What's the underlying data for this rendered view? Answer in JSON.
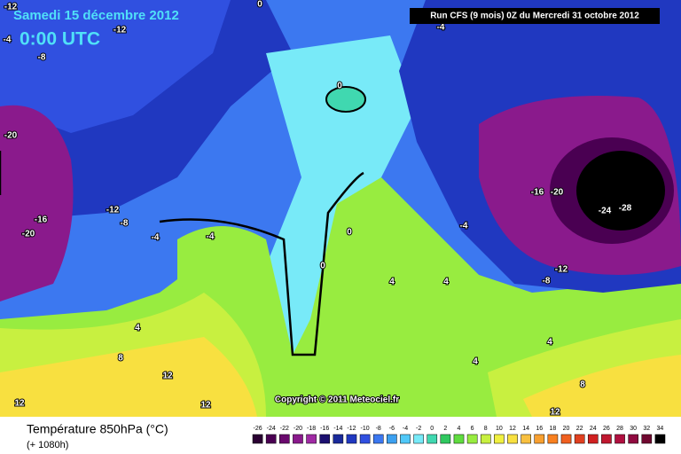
{
  "header": {
    "date": "Samedi 15 décembre 2012",
    "time": "0:00 UTC",
    "run": "Run CFS (9 mois) 0Z du Mercredi 31 octobre 2012"
  },
  "footer": {
    "title": "Température 850hPa (°C)",
    "subtitle": "(+ 1080h)",
    "copyright": "Copyright © 2011 Meteociel.fr"
  },
  "legend": {
    "values": [
      -26,
      -24,
      -22,
      -20,
      -18,
      -16,
      -14,
      -12,
      -10,
      -8,
      -6,
      -4,
      -2,
      0,
      2,
      4,
      6,
      8,
      10,
      12,
      14,
      16,
      18,
      20,
      22,
      24,
      26,
      28,
      30,
      32,
      34
    ],
    "colors": [
      "#2a0032",
      "#4a0052",
      "#6a0a6e",
      "#8a1a8c",
      "#a02aa4",
      "#1c1070",
      "#1a2a9a",
      "#2038c0",
      "#3050e0",
      "#3c78f0",
      "#3ca0f0",
      "#50c8f8",
      "#78eaf8",
      "#40d8b0",
      "#30c860",
      "#60dc40",
      "#98ec40",
      "#c8f040",
      "#f0f040",
      "#f8e040",
      "#f8c040",
      "#f8a030",
      "#f88020",
      "#f06020",
      "#e04020",
      "#d02020",
      "#c01830",
      "#b01040",
      "#900a40",
      "#700830",
      "#000000"
    ]
  },
  "contour_labels": [
    0,
    -12,
    -4,
    -8,
    -12,
    -4,
    0,
    -20,
    -16,
    -20,
    -12,
    -8,
    -4,
    -4,
    0,
    -4,
    0,
    -16,
    -20,
    -24,
    -28,
    -12,
    -8,
    4,
    4,
    4,
    8,
    12,
    4,
    4,
    8,
    12,
    12,
    12
  ]
}
